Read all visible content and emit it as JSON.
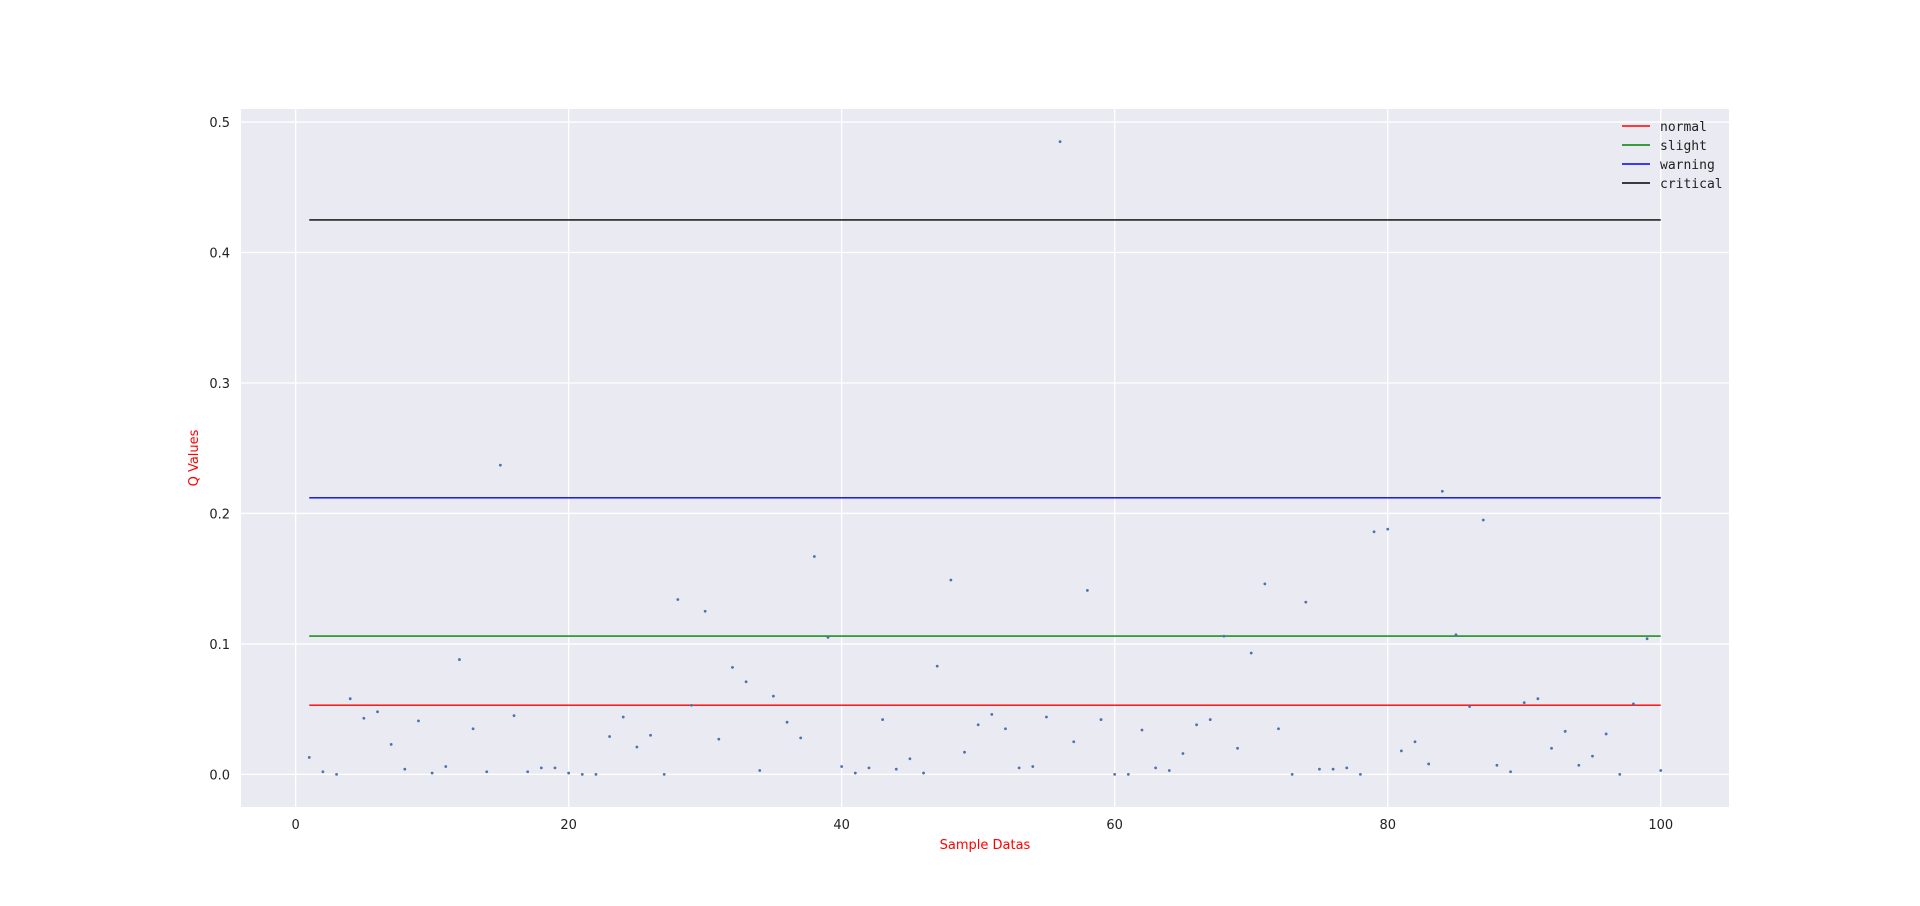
{
  "chart_data": {
    "type": "scatter",
    "xlabel": "Sample Datas",
    "ylabel": "Q Values",
    "xlim": [
      -4,
      105
    ],
    "ylim": [
      -0.025,
      0.51
    ],
    "x_ticks": [
      0,
      20,
      40,
      60,
      80,
      100
    ],
    "y_ticks": [
      0.0,
      0.1,
      0.2,
      0.3,
      0.4,
      0.5
    ],
    "y_tick_labels": [
      "0.0",
      "0.1",
      "0.2",
      "0.3",
      "0.4",
      "0.5"
    ],
    "grid": true,
    "legend_position": "top-right",
    "colors": {
      "background": "#eaeaf2",
      "grid": "#ffffff",
      "points": "#4c72b0",
      "axis_title": "#ff0000"
    },
    "thresholds": [
      {
        "name": "normal",
        "value": 0.053,
        "color": "#ff0000"
      },
      {
        "name": "slight",
        "value": 0.106,
        "color": "#008000"
      },
      {
        "name": "warning",
        "value": 0.212,
        "color": "#0000ff"
      },
      {
        "name": "critical",
        "value": 0.425,
        "color": "#000000"
      }
    ],
    "threshold_x_range": [
      1,
      100
    ],
    "points": [
      {
        "x": 1,
        "y": 0.013
      },
      {
        "x": 2,
        "y": 0.002
      },
      {
        "x": 3,
        "y": 0.0
      },
      {
        "x": 4,
        "y": 0.058
      },
      {
        "x": 5,
        "y": 0.043
      },
      {
        "x": 6,
        "y": 0.048
      },
      {
        "x": 7,
        "y": 0.023
      },
      {
        "x": 8,
        "y": 0.004
      },
      {
        "x": 9,
        "y": 0.041
      },
      {
        "x": 10,
        "y": 0.001
      },
      {
        "x": 11,
        "y": 0.006
      },
      {
        "x": 12,
        "y": 0.088
      },
      {
        "x": 13,
        "y": 0.035
      },
      {
        "x": 14,
        "y": 0.002
      },
      {
        "x": 15,
        "y": 0.237
      },
      {
        "x": 16,
        "y": 0.045
      },
      {
        "x": 17,
        "y": 0.002
      },
      {
        "x": 18,
        "y": 0.005
      },
      {
        "x": 19,
        "y": 0.005
      },
      {
        "x": 20,
        "y": 0.001
      },
      {
        "x": 21,
        "y": 0.0
      },
      {
        "x": 22,
        "y": 0.0
      },
      {
        "x": 23,
        "y": 0.029
      },
      {
        "x": 24,
        "y": 0.044
      },
      {
        "x": 25,
        "y": 0.021
      },
      {
        "x": 26,
        "y": 0.03
      },
      {
        "x": 27,
        "y": 0.0
      },
      {
        "x": 28,
        "y": 0.134
      },
      {
        "x": 29,
        "y": 0.053
      },
      {
        "x": 30,
        "y": 0.125
      },
      {
        "x": 31,
        "y": 0.027
      },
      {
        "x": 32,
        "y": 0.082
      },
      {
        "x": 33,
        "y": 0.071
      },
      {
        "x": 34,
        "y": 0.003
      },
      {
        "x": 35,
        "y": 0.06
      },
      {
        "x": 36,
        "y": 0.04
      },
      {
        "x": 37,
        "y": 0.028
      },
      {
        "x": 38,
        "y": 0.167
      },
      {
        "x": 39,
        "y": 0.105
      },
      {
        "x": 40,
        "y": 0.006
      },
      {
        "x": 41,
        "y": 0.001
      },
      {
        "x": 42,
        "y": 0.005
      },
      {
        "x": 43,
        "y": 0.042
      },
      {
        "x": 44,
        "y": 0.004
      },
      {
        "x": 45,
        "y": 0.012
      },
      {
        "x": 46,
        "y": 0.001
      },
      {
        "x": 47,
        "y": 0.083
      },
      {
        "x": 48,
        "y": 0.149
      },
      {
        "x": 49,
        "y": 0.017
      },
      {
        "x": 50,
        "y": 0.038
      },
      {
        "x": 51,
        "y": 0.046
      },
      {
        "x": 52,
        "y": 0.035
      },
      {
        "x": 53,
        "y": 0.005
      },
      {
        "x": 54,
        "y": 0.006
      },
      {
        "x": 55,
        "y": 0.044
      },
      {
        "x": 56,
        "y": 0.485
      },
      {
        "x": 57,
        "y": 0.025
      },
      {
        "x": 58,
        "y": 0.141
      },
      {
        "x": 59,
        "y": 0.042
      },
      {
        "x": 60,
        "y": 0.0
      },
      {
        "x": 61,
        "y": 0.0
      },
      {
        "x": 62,
        "y": 0.034
      },
      {
        "x": 63,
        "y": 0.005
      },
      {
        "x": 64,
        "y": 0.003
      },
      {
        "x": 65,
        "y": 0.016
      },
      {
        "x": 66,
        "y": 0.038
      },
      {
        "x": 67,
        "y": 0.042
      },
      {
        "x": 68,
        "y": 0.106
      },
      {
        "x": 69,
        "y": 0.02
      },
      {
        "x": 70,
        "y": 0.093
      },
      {
        "x": 71,
        "y": 0.146
      },
      {
        "x": 72,
        "y": 0.035
      },
      {
        "x": 73,
        "y": 0.0
      },
      {
        "x": 74,
        "y": 0.132
      },
      {
        "x": 75,
        "y": 0.004
      },
      {
        "x": 76,
        "y": 0.004
      },
      {
        "x": 77,
        "y": 0.005
      },
      {
        "x": 78,
        "y": 0.0
      },
      {
        "x": 79,
        "y": 0.186
      },
      {
        "x": 80,
        "y": 0.188
      },
      {
        "x": 81,
        "y": 0.018
      },
      {
        "x": 82,
        "y": 0.025
      },
      {
        "x": 83,
        "y": 0.008
      },
      {
        "x": 84,
        "y": 0.217
      },
      {
        "x": 85,
        "y": 0.107
      },
      {
        "x": 86,
        "y": 0.052
      },
      {
        "x": 87,
        "y": 0.195
      },
      {
        "x": 88,
        "y": 0.007
      },
      {
        "x": 89,
        "y": 0.002
      },
      {
        "x": 90,
        "y": 0.055
      },
      {
        "x": 91,
        "y": 0.058
      },
      {
        "x": 92,
        "y": 0.02
      },
      {
        "x": 93,
        "y": 0.033
      },
      {
        "x": 94,
        "y": 0.007
      },
      {
        "x": 95,
        "y": 0.014
      },
      {
        "x": 96,
        "y": 0.031
      },
      {
        "x": 97,
        "y": 0.0
      },
      {
        "x": 98,
        "y": 0.054
      },
      {
        "x": 99,
        "y": 0.104
      },
      {
        "x": 100,
        "y": 0.003
      }
    ]
  }
}
